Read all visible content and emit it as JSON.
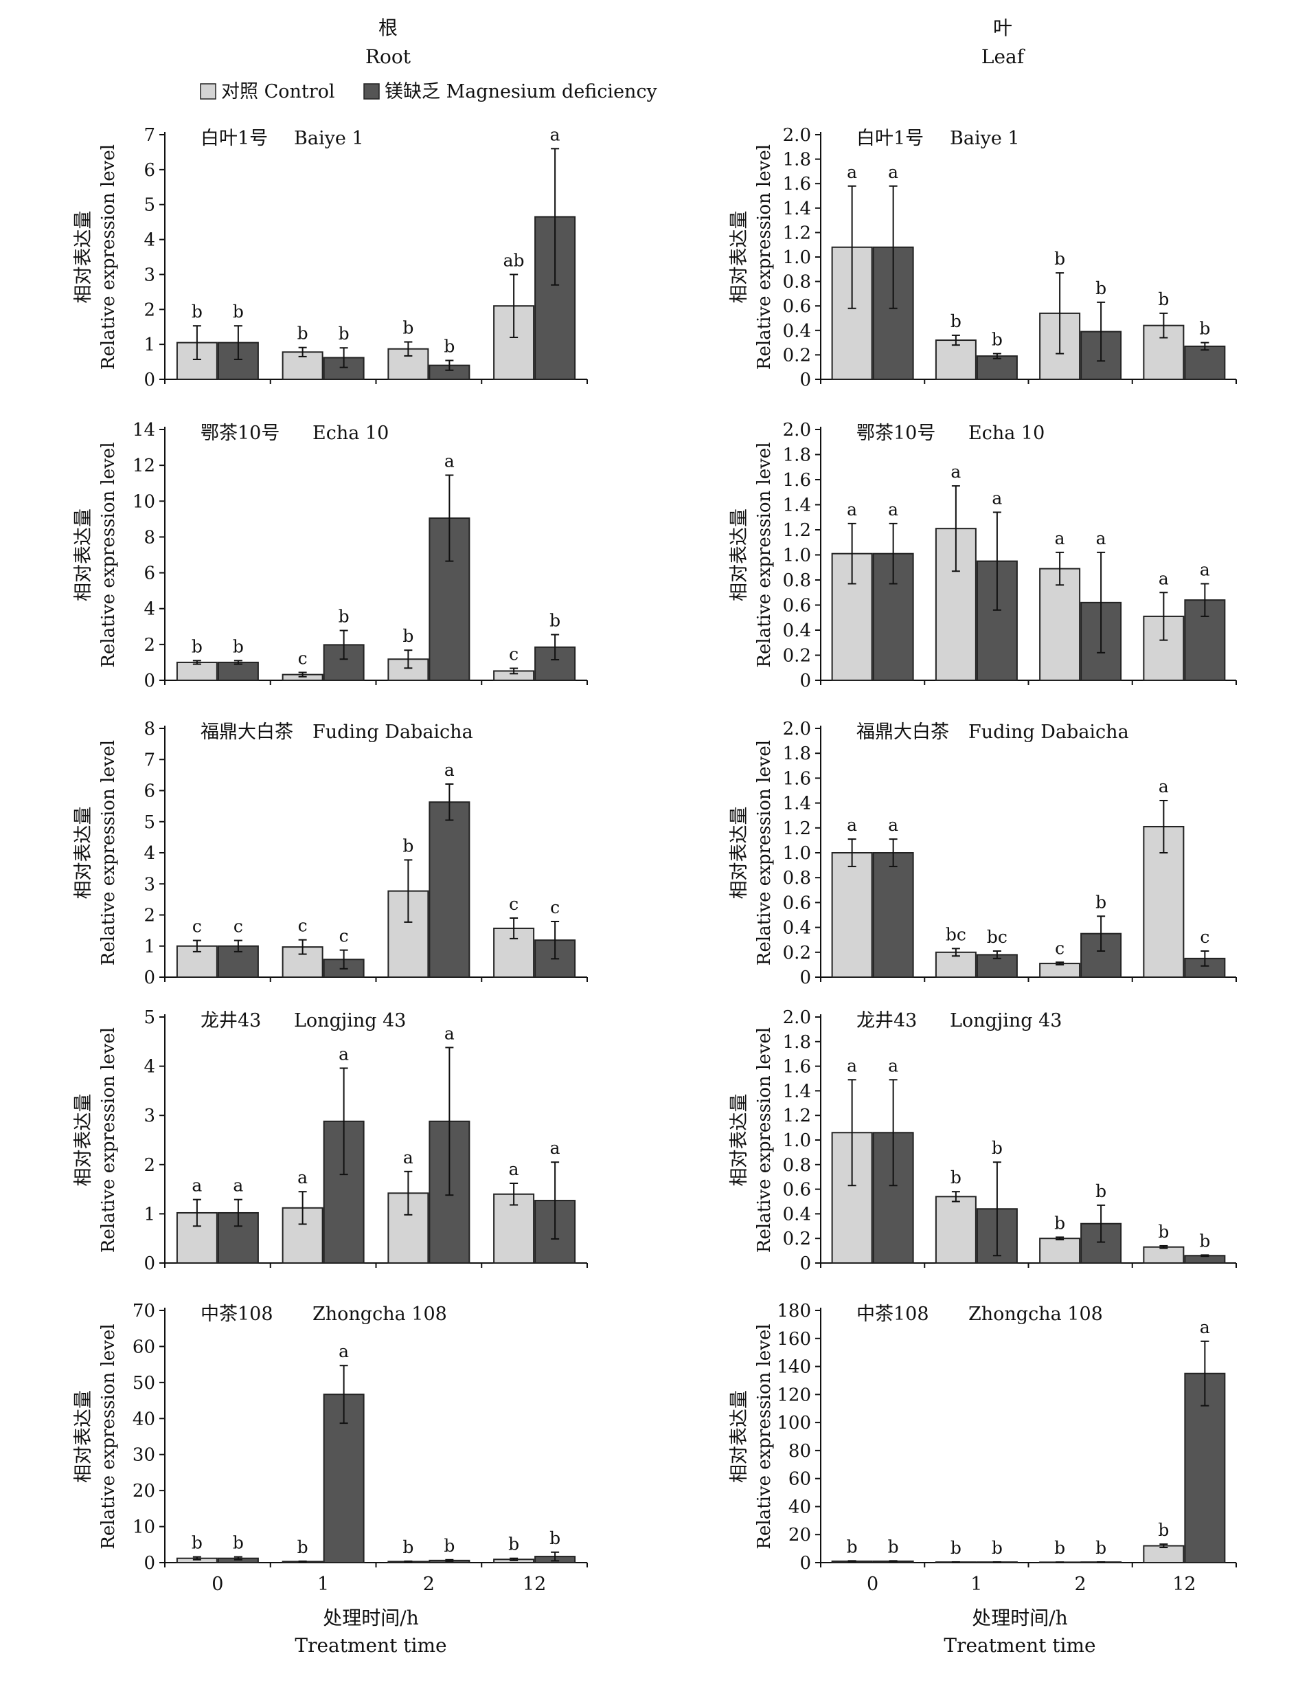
{
  "columns": {
    "root": {
      "title_zh": "根",
      "title_en": "Root"
    },
    "leaf": {
      "title_zh": "叶",
      "title_en": "Leaf"
    }
  },
  "legend": [
    {
      "label": "对照 Control",
      "color": "#d4d4d4"
    },
    {
      "label": "镁缺乏 Magnesium deficiency",
      "color": "#555555"
    }
  ],
  "ylabel_zh": "相对表达量",
  "ylabel_en": "Relative expression level",
  "xlabel_zh": "处理时间/h",
  "xlabel_en": "Treatment time",
  "categories": [
    "0",
    "1",
    "2",
    "12"
  ],
  "chart_data": [
    {
      "type": "bar",
      "column": "root",
      "title_zh": "白叶1号",
      "title_en": "Baiye 1",
      "categories": [
        "0",
        "1",
        "2",
        "12"
      ],
      "ylim": [
        0,
        7
      ],
      "yticks": [
        "0",
        "1",
        "2",
        "3",
        "4",
        "5",
        "6",
        "7"
      ],
      "series": [
        {
          "name": "对照 Control",
          "values": [
            1.05,
            0.78,
            0.87,
            2.1
          ],
          "errors": [
            0.48,
            0.13,
            0.2,
            0.9
          ],
          "letters": [
            "b",
            "b",
            "b",
            "ab"
          ]
        },
        {
          "name": "镁缺乏 Magnesium deficiency",
          "values": [
            1.05,
            0.62,
            0.4,
            4.65
          ],
          "errors": [
            0.48,
            0.28,
            0.14,
            1.95
          ],
          "letters": [
            "b",
            "b",
            "b",
            "a"
          ]
        }
      ]
    },
    {
      "type": "bar",
      "column": "leaf",
      "title_zh": "白叶1号",
      "title_en": "Baiye 1",
      "categories": [
        "0",
        "1",
        "2",
        "12"
      ],
      "ylim": [
        0,
        2
      ],
      "yticks": [
        "0",
        "0.2",
        "0.4",
        "0.6",
        "0.8",
        "1.0",
        "1.2",
        "1.4",
        "1.6",
        "1.8",
        "2.0"
      ],
      "series": [
        {
          "name": "对照 Control",
          "values": [
            1.08,
            0.32,
            0.54,
            0.44
          ],
          "errors": [
            0.5,
            0.04,
            0.33,
            0.1
          ],
          "letters": [
            "a",
            "b",
            "b",
            "b"
          ]
        },
        {
          "name": "镁缺乏 Magnesium deficiency",
          "values": [
            1.08,
            0.19,
            0.39,
            0.27
          ],
          "errors": [
            0.5,
            0.02,
            0.24,
            0.03
          ],
          "letters": [
            "a",
            "b",
            "b",
            "b"
          ]
        }
      ]
    },
    {
      "type": "bar",
      "column": "root",
      "title_zh": "鄂茶10号",
      "title_en": "Echa 10",
      "categories": [
        "0",
        "1",
        "2",
        "12"
      ],
      "ylim": [
        0,
        14
      ],
      "yticks": [
        "0",
        "2",
        "4",
        "6",
        "8",
        "10",
        "12",
        "14"
      ],
      "series": [
        {
          "name": "对照 Control",
          "values": [
            1.0,
            0.32,
            1.18,
            0.52
          ],
          "errors": [
            0.1,
            0.12,
            0.5,
            0.15
          ],
          "letters": [
            "b",
            "c",
            "b",
            "c"
          ]
        },
        {
          "name": "镁缺乏 Magnesium deficiency",
          "values": [
            1.0,
            1.98,
            9.05,
            1.85
          ],
          "errors": [
            0.1,
            0.8,
            2.4,
            0.7
          ],
          "letters": [
            "b",
            "b",
            "a",
            "b"
          ]
        }
      ]
    },
    {
      "type": "bar",
      "column": "leaf",
      "title_zh": "鄂茶10号",
      "title_en": "Echa 10",
      "categories": [
        "0",
        "1",
        "2",
        "12"
      ],
      "ylim": [
        0,
        2
      ],
      "yticks": [
        "0",
        "0.2",
        "0.4",
        "0.6",
        "0.8",
        "1.0",
        "1.2",
        "1.4",
        "1.6",
        "1.8",
        "2.0"
      ],
      "series": [
        {
          "name": "对照 Control",
          "values": [
            1.01,
            1.21,
            0.89,
            0.51
          ],
          "errors": [
            0.24,
            0.34,
            0.13,
            0.19
          ],
          "letters": [
            "a",
            "a",
            "a",
            "a"
          ]
        },
        {
          "name": "镁缺乏 Magnesium deficiency",
          "values": [
            1.01,
            0.95,
            0.62,
            0.64
          ],
          "errors": [
            0.24,
            0.39,
            0.4,
            0.13
          ],
          "letters": [
            "a",
            "a",
            "a",
            "a"
          ]
        }
      ]
    },
    {
      "type": "bar",
      "column": "root",
      "title_zh": "福鼎大白茶",
      "title_en": "Fuding Dabaicha",
      "categories": [
        "0",
        "1",
        "2",
        "12"
      ],
      "ylim": [
        0,
        8
      ],
      "yticks": [
        "0",
        "1",
        "2",
        "3",
        "4",
        "5",
        "6",
        "7",
        "8"
      ],
      "series": [
        {
          "name": "对照 Control",
          "values": [
            1.0,
            0.97,
            2.77,
            1.57
          ],
          "errors": [
            0.18,
            0.23,
            1.0,
            0.33
          ],
          "letters": [
            "c",
            "c",
            "b",
            "c"
          ]
        },
        {
          "name": "镁缺乏 Magnesium deficiency",
          "values": [
            1.0,
            0.57,
            5.63,
            1.19
          ],
          "errors": [
            0.18,
            0.3,
            0.58,
            0.6
          ],
          "letters": [
            "c",
            "c",
            "a",
            "c"
          ]
        }
      ]
    },
    {
      "type": "bar",
      "column": "leaf",
      "title_zh": "福鼎大白茶",
      "title_en": "Fuding Dabaicha",
      "categories": [
        "0",
        "1",
        "2",
        "12"
      ],
      "ylim": [
        0,
        2
      ],
      "yticks": [
        "0",
        "0.2",
        "0.4",
        "0.6",
        "0.8",
        "1.0",
        "1.2",
        "1.4",
        "1.6",
        "1.8",
        "2.0"
      ],
      "series": [
        {
          "name": "对照 Control",
          "values": [
            1.0,
            0.2,
            0.11,
            1.21
          ],
          "errors": [
            0.11,
            0.03,
            0.01,
            0.21
          ],
          "letters": [
            "a",
            "bc",
            "c",
            "a"
          ]
        },
        {
          "name": "镁缺乏 Magnesium deficiency",
          "values": [
            1.0,
            0.18,
            0.35,
            0.15
          ],
          "errors": [
            0.11,
            0.03,
            0.14,
            0.06
          ],
          "letters": [
            "a",
            "bc",
            "b",
            "c"
          ]
        }
      ]
    },
    {
      "type": "bar",
      "column": "root",
      "title_zh": "龙井43",
      "title_en": "Longjing 43",
      "categories": [
        "0",
        "1",
        "2",
        "12"
      ],
      "ylim": [
        0,
        5
      ],
      "yticks": [
        "0",
        "1",
        "2",
        "3",
        "4",
        "5"
      ],
      "series": [
        {
          "name": "对照 Control",
          "values": [
            1.02,
            1.12,
            1.42,
            1.4
          ],
          "errors": [
            0.27,
            0.33,
            0.44,
            0.22
          ],
          "letters": [
            "a",
            "a",
            "a",
            "a"
          ]
        },
        {
          "name": "镁缺乏 Magnesium deficiency",
          "values": [
            1.02,
            2.88,
            2.88,
            1.27
          ],
          "errors": [
            0.27,
            1.08,
            1.5,
            0.78
          ],
          "letters": [
            "a",
            "a",
            "a",
            "a"
          ]
        }
      ]
    },
    {
      "type": "bar",
      "column": "leaf",
      "title_zh": "龙井43",
      "title_en": "Longjing 43",
      "categories": [
        "0",
        "1",
        "2",
        "12"
      ],
      "ylim": [
        0,
        2
      ],
      "yticks": [
        "0",
        "0.2",
        "0.4",
        "0.6",
        "0.8",
        "1.0",
        "1.2",
        "1.4",
        "1.6",
        "1.8",
        "2.0"
      ],
      "series": [
        {
          "name": "对照 Control",
          "values": [
            1.06,
            0.54,
            0.2,
            0.13
          ],
          "errors": [
            0.43,
            0.04,
            0.01,
            0.01
          ],
          "letters": [
            "a",
            "b",
            "b",
            "b"
          ]
        },
        {
          "name": "镁缺乏 Magnesium deficiency",
          "values": [
            1.06,
            0.44,
            0.32,
            0.06
          ],
          "errors": [
            0.43,
            0.38,
            0.15,
            0.005
          ],
          "letters": [
            "a",
            "b",
            "b",
            "b"
          ]
        }
      ]
    },
    {
      "type": "bar",
      "column": "root",
      "title_zh": "中茶108",
      "title_en": "Zhongcha 108",
      "categories": [
        "0",
        "1",
        "2",
        "12"
      ],
      "ylim": [
        0,
        70
      ],
      "yticks": [
        "0",
        "10",
        "20",
        "30",
        "40",
        "50",
        "60",
        "70"
      ],
      "series": [
        {
          "name": "对照 Control",
          "values": [
            1.2,
            0.3,
            0.3,
            0.9
          ],
          "errors": [
            0.4,
            0.1,
            0.1,
            0.3
          ],
          "letters": [
            "b",
            "b",
            "b",
            "b"
          ]
        },
        {
          "name": "镁缺乏 Magnesium deficiency",
          "values": [
            1.2,
            46.7,
            0.6,
            1.7
          ],
          "errors": [
            0.4,
            8.0,
            0.2,
            1.2
          ],
          "letters": [
            "b",
            "a",
            "b",
            "b"
          ]
        }
      ]
    },
    {
      "type": "bar",
      "column": "leaf",
      "title_zh": "中茶108",
      "title_en": "Zhongcha 108",
      "categories": [
        "0",
        "1",
        "2",
        "12"
      ],
      "ylim": [
        0,
        180
      ],
      "yticks": [
        "0",
        "20",
        "40",
        "60",
        "80",
        "100",
        "120",
        "140",
        "160",
        "180"
      ],
      "series": [
        {
          "name": "对照 Control",
          "values": [
            1.0,
            0.4,
            0.3,
            12.0
          ],
          "errors": [
            0.3,
            0.1,
            0.1,
            1.2
          ],
          "letters": [
            "b",
            "b",
            "b",
            "b"
          ]
        },
        {
          "name": "镁缺乏 Magnesium deficiency",
          "values": [
            1.0,
            0.4,
            0.4,
            135.0
          ],
          "errors": [
            0.3,
            0.1,
            0.1,
            23.0
          ],
          "letters": [
            "b",
            "b",
            "b",
            "a"
          ]
        }
      ]
    }
  ]
}
